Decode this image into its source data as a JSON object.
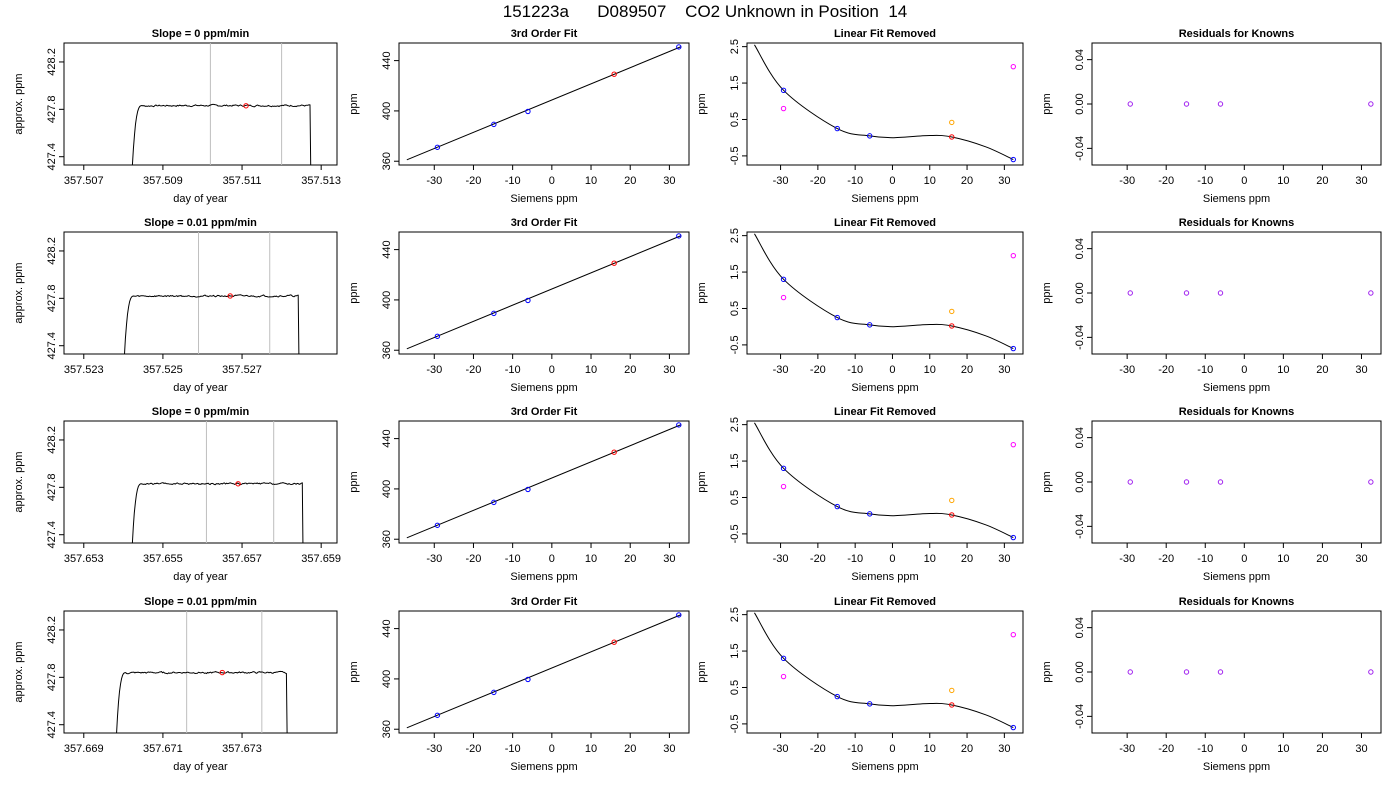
{
  "figure_title": "151223a      D089507    CO2 Unknown in Position  14",
  "colors": {
    "trace": "#000000",
    "window": "#bebebe",
    "known": "#0000ff",
    "unknown": "#ff0000",
    "orange": "#ffa500",
    "magenta": "#ff00ff",
    "purple": "#a020f0"
  },
  "chart_data": [
    {
      "type": "line",
      "title": "Slope =  0  ppm/min",
      "xlabel": "day of year",
      "ylabel": "approx. ppm",
      "xlim": [
        357.5065,
        357.5134
      ],
      "ylim": [
        427.33,
        428.36
      ],
      "xticks": [
        357.507,
        357.509,
        357.511,
        357.513
      ],
      "xtick_labels": [
        "357.507",
        "357.509",
        "357.511",
        "357.513"
      ],
      "yticks": [
        427.4,
        427.8,
        428.2
      ],
      "ytick_labels": [
        "427.4",
        "427.8",
        "428.2"
      ],
      "window_lines": [
        357.5102,
        357.512
      ],
      "trace_start": 357.5082,
      "trace_end": 357.5128,
      "plateau": 427.832,
      "marker": {
        "x": 357.5111,
        "y": 427.83
      }
    },
    {
      "type": "scatter",
      "title": "3rd Order Fit",
      "xlabel": "Siemens ppm",
      "ylabel": "ppm",
      "xlim": [
        -39,
        35
      ],
      "ylim": [
        357,
        454
      ],
      "xticks": [
        -30,
        -20,
        -10,
        0,
        10,
        20,
        30
      ],
      "xtick_labels": [
        "-30",
        "-20",
        "-10",
        "0",
        "10",
        "20",
        "30"
      ],
      "yticks": [
        360,
        400,
        440
      ],
      "ytick_labels": [
        "360",
        "400",
        "440"
      ],
      "fit_line": [
        [
          -37,
          361.1
        ],
        [
          33,
          451.1
        ]
      ],
      "knowns": {
        "x": [
          -29.2,
          -14.8,
          -6.1,
          32.4
        ],
        "y": [
          371.1,
          389.3,
          399.6,
          450.9
        ]
      },
      "unknown": {
        "x": 15.9,
        "y": 429.2
      }
    },
    {
      "type": "line",
      "title": "Linear Fit Removed",
      "xlabel": "Siemens ppm",
      "ylabel": "ppm",
      "xlim": [
        -39,
        35
      ],
      "ylim": [
        -0.75,
        2.6
      ],
      "xticks": [
        -30,
        -20,
        -10,
        0,
        10,
        20,
        30
      ],
      "xtick_labels": [
        "-30",
        "-20",
        "-10",
        "0",
        "10",
        "20",
        "30"
      ],
      "yticks": [
        -0.5,
        0.5,
        1.5,
        2.5
      ],
      "ytick_labels": [
        "-0.5",
        "0.5",
        "1.5",
        "2.5"
      ],
      "curve_points": [
        [
          -37,
          2.55
        ],
        [
          -29.2,
          1.3
        ],
        [
          -14.8,
          0.25
        ],
        [
          -6.1,
          0.05
        ],
        [
          0,
          0.0
        ],
        [
          10,
          0.06
        ],
        [
          15.9,
          0.02
        ],
        [
          25,
          -0.25
        ],
        [
          32.4,
          -0.6
        ]
      ],
      "knowns": {
        "x": [
          -29.2,
          -14.8,
          -6.1,
          32.4
        ],
        "y": [
          1.3,
          0.25,
          0.05,
          -0.6
        ]
      },
      "unknown": {
        "x": 15.9,
        "y": 0.02
      },
      "orange_point": {
        "x": 15.9,
        "y": 0.42
      },
      "magenta_points": {
        "x": [
          -29.2,
          32.4
        ],
        "y": [
          0.8,
          1.95
        ]
      }
    },
    {
      "type": "scatter",
      "title": "Residuals for Knowns",
      "xlabel": "Siemens ppm",
      "ylabel": "ppm",
      "xlim": [
        -39,
        35
      ],
      "ylim": [
        -0.055,
        0.055
      ],
      "xticks": [
        -30,
        -20,
        -10,
        0,
        10,
        20,
        30
      ],
      "xtick_labels": [
        "-30",
        "-20",
        "-10",
        "0",
        "10",
        "20",
        "30"
      ],
      "yticks": [
        -0.04,
        0.0,
        0.04
      ],
      "ytick_labels": [
        "-0.04",
        "0.00",
        "0.04"
      ],
      "knowns": {
        "x": [
          -29.2,
          -14.8,
          -6.1,
          32.4
        ],
        "y": [
          0,
          0,
          0,
          0
        ]
      }
    },
    {
      "type": "line",
      "title": "Slope =  0.01  ppm/min",
      "xlabel": "day of year",
      "ylabel": "approx. ppm",
      "xlim": [
        357.5225,
        357.5294
      ],
      "ylim": [
        427.33,
        428.36
      ],
      "xticks": [
        357.523,
        357.525,
        357.527
      ],
      "xtick_labels": [
        "357.523",
        "357.525",
        "357.527"
      ],
      "yticks": [
        427.4,
        427.8,
        428.2
      ],
      "ytick_labels": [
        "427.4",
        "427.8",
        "428.2"
      ],
      "window_lines": [
        357.5259,
        357.5277
      ],
      "trace_start": 357.524,
      "trace_end": 357.5285,
      "plateau": 427.82,
      "marker": {
        "x": 357.5267,
        "y": 427.82
      }
    },
    {
      "type": "scatter",
      "title": "3rd Order Fit",
      "xlabel": "Siemens ppm",
      "ylabel": "ppm",
      "xlim": [
        -39,
        35
      ],
      "ylim": [
        357,
        454
      ],
      "xticks": [
        -30,
        -20,
        -10,
        0,
        10,
        20,
        30
      ],
      "xtick_labels": [
        "-30",
        "-20",
        "-10",
        "0",
        "10",
        "20",
        "30"
      ],
      "yticks": [
        360,
        400,
        440
      ],
      "ytick_labels": [
        "360",
        "400",
        "440"
      ],
      "fit_line": [
        [
          -37,
          361.1
        ],
        [
          33,
          451.1
        ]
      ],
      "knowns": {
        "x": [
          -29.2,
          -14.8,
          -6.1,
          32.4
        ],
        "y": [
          371.1,
          389.3,
          399.6,
          450.9
        ]
      },
      "unknown": {
        "x": 15.9,
        "y": 429.2
      }
    },
    {
      "type": "line",
      "title": "Linear Fit Removed",
      "xlabel": "Siemens ppm",
      "ylabel": "ppm",
      "xlim": [
        -39,
        35
      ],
      "ylim": [
        -0.75,
        2.6
      ],
      "xticks": [
        -30,
        -20,
        -10,
        0,
        10,
        20,
        30
      ],
      "xtick_labels": [
        "-30",
        "-20",
        "-10",
        "0",
        "10",
        "20",
        "30"
      ],
      "yticks": [
        -0.5,
        0.5,
        1.5,
        2.5
      ],
      "ytick_labels": [
        "-0.5",
        "0.5",
        "1.5",
        "2.5"
      ],
      "curve_points": [
        [
          -37,
          2.55
        ],
        [
          -29.2,
          1.3
        ],
        [
          -14.8,
          0.25
        ],
        [
          -6.1,
          0.05
        ],
        [
          0,
          0.0
        ],
        [
          10,
          0.06
        ],
        [
          15.9,
          0.02
        ],
        [
          25,
          -0.25
        ],
        [
          32.4,
          -0.6
        ]
      ],
      "knowns": {
        "x": [
          -29.2,
          -14.8,
          -6.1,
          32.4
        ],
        "y": [
          1.3,
          0.25,
          0.05,
          -0.6
        ]
      },
      "unknown": {
        "x": 15.9,
        "y": 0.02
      },
      "orange_point": {
        "x": 15.9,
        "y": 0.42
      },
      "magenta_points": {
        "x": [
          -29.2,
          32.4
        ],
        "y": [
          0.8,
          1.95
        ]
      }
    },
    {
      "type": "scatter",
      "title": "Residuals for Knowns",
      "xlabel": "Siemens ppm",
      "ylabel": "ppm",
      "xlim": [
        -39,
        35
      ],
      "ylim": [
        -0.055,
        0.055
      ],
      "xticks": [
        -30,
        -20,
        -10,
        0,
        10,
        20,
        30
      ],
      "xtick_labels": [
        "-30",
        "-20",
        "-10",
        "0",
        "10",
        "20",
        "30"
      ],
      "yticks": [
        -0.04,
        0.0,
        0.04
      ],
      "ytick_labels": [
        "-0.04",
        "0.00",
        "0.04"
      ],
      "knowns": {
        "x": [
          -29.2,
          -14.8,
          -6.1,
          32.4
        ],
        "y": [
          0,
          0,
          0,
          0
        ]
      }
    },
    {
      "type": "line",
      "title": "Slope =  0  ppm/min",
      "xlabel": "day of year",
      "ylabel": "approx. ppm",
      "xlim": [
        357.6525,
        357.6594
      ],
      "ylim": [
        427.33,
        428.36
      ],
      "xticks": [
        357.653,
        357.655,
        357.657,
        357.659
      ],
      "xtick_labels": [
        "357.653",
        "357.655",
        "357.657",
        "357.659"
      ],
      "yticks": [
        427.4,
        427.8,
        428.2
      ],
      "ytick_labels": [
        "427.4",
        "427.8",
        "428.2"
      ],
      "window_lines": [
        357.6561,
        357.6578
      ],
      "trace_start": 357.6542,
      "trace_end": 357.6586,
      "plateau": 427.83,
      "marker": {
        "x": 357.6569,
        "y": 427.83
      }
    },
    {
      "type": "scatter",
      "title": "3rd Order Fit",
      "xlabel": "Siemens ppm",
      "ylabel": "ppm",
      "xlim": [
        -39,
        35
      ],
      "ylim": [
        357,
        454
      ],
      "xticks": [
        -30,
        -20,
        -10,
        0,
        10,
        20,
        30
      ],
      "xtick_labels": [
        "-30",
        "-20",
        "-10",
        "0",
        "10",
        "20",
        "30"
      ],
      "yticks": [
        360,
        400,
        440
      ],
      "ytick_labels": [
        "360",
        "400",
        "440"
      ],
      "fit_line": [
        [
          -37,
          361.1
        ],
        [
          33,
          451.1
        ]
      ],
      "knowns": {
        "x": [
          -29.2,
          -14.8,
          -6.1,
          32.4
        ],
        "y": [
          371.1,
          389.3,
          399.6,
          450.9
        ]
      },
      "unknown": {
        "x": 15.9,
        "y": 429.2
      }
    },
    {
      "type": "line",
      "title": "Linear Fit Removed",
      "xlabel": "Siemens ppm",
      "ylabel": "ppm",
      "xlim": [
        -39,
        35
      ],
      "ylim": [
        -0.75,
        2.6
      ],
      "xticks": [
        -30,
        -20,
        -10,
        0,
        10,
        20,
        30
      ],
      "xtick_labels": [
        "-30",
        "-20",
        "-10",
        "0",
        "10",
        "20",
        "30"
      ],
      "yticks": [
        -0.5,
        0.5,
        1.5,
        2.5
      ],
      "ytick_labels": [
        "-0.5",
        "0.5",
        "1.5",
        "2.5"
      ],
      "curve_points": [
        [
          -37,
          2.55
        ],
        [
          -29.2,
          1.3
        ],
        [
          -14.8,
          0.25
        ],
        [
          -6.1,
          0.05
        ],
        [
          0,
          0.0
        ],
        [
          10,
          0.06
        ],
        [
          15.9,
          0.02
        ],
        [
          25,
          -0.25
        ],
        [
          32.4,
          -0.6
        ]
      ],
      "knowns": {
        "x": [
          -29.2,
          -14.8,
          -6.1,
          32.4
        ],
        "y": [
          1.3,
          0.25,
          0.05,
          -0.6
        ]
      },
      "unknown": {
        "x": 15.9,
        "y": 0.02
      },
      "orange_point": {
        "x": 15.9,
        "y": 0.42
      },
      "magenta_points": {
        "x": [
          -29.2,
          32.4
        ],
        "y": [
          0.8,
          1.95
        ]
      }
    },
    {
      "type": "scatter",
      "title": "Residuals for Knowns",
      "xlabel": "Siemens ppm",
      "ylabel": "ppm",
      "xlim": [
        -39,
        35
      ],
      "ylim": [
        -0.055,
        0.055
      ],
      "xticks": [
        -30,
        -20,
        -10,
        0,
        10,
        20,
        30
      ],
      "xtick_labels": [
        "-30",
        "-20",
        "-10",
        "0",
        "10",
        "20",
        "30"
      ],
      "yticks": [
        -0.04,
        0.0,
        0.04
      ],
      "ytick_labels": [
        "-0.04",
        "0.00",
        "0.04"
      ],
      "knowns": {
        "x": [
          -29.2,
          -14.8,
          -6.1,
          32.4
        ],
        "y": [
          0,
          0,
          0,
          0
        ]
      }
    },
    {
      "type": "line",
      "title": "Slope =  0.01  ppm/min",
      "xlabel": "day of year",
      "ylabel": "approx. ppm",
      "xlim": [
        357.6685,
        357.6754
      ],
      "ylim": [
        427.33,
        428.36
      ],
      "xticks": [
        357.669,
        357.671,
        357.673
      ],
      "xtick_labels": [
        "357.669",
        "357.671",
        "357.673"
      ],
      "yticks": [
        427.4,
        427.8,
        428.2
      ],
      "ytick_labels": [
        "427.4",
        "427.8",
        "428.2"
      ],
      "window_lines": [
        357.6716,
        357.6735
      ],
      "trace_start": 357.6698,
      "trace_end": 357.6742,
      "plateau": 427.84,
      "marker": {
        "x": 357.6725,
        "y": 427.84
      }
    },
    {
      "type": "scatter",
      "title": "3rd Order Fit",
      "xlabel": "Siemens ppm",
      "ylabel": "ppm",
      "xlim": [
        -39,
        35
      ],
      "ylim": [
        357,
        454
      ],
      "xticks": [
        -30,
        -20,
        -10,
        0,
        10,
        20,
        30
      ],
      "xtick_labels": [
        "-30",
        "-20",
        "-10",
        "0",
        "10",
        "20",
        "30"
      ],
      "yticks": [
        360,
        400,
        440
      ],
      "ytick_labels": [
        "360",
        "400",
        "440"
      ],
      "fit_line": [
        [
          -37,
          361.1
        ],
        [
          33,
          451.1
        ]
      ],
      "knowns": {
        "x": [
          -29.2,
          -14.8,
          -6.1,
          32.4
        ],
        "y": [
          371.1,
          389.3,
          399.6,
          450.9
        ]
      },
      "unknown": {
        "x": 15.9,
        "y": 429.2
      }
    },
    {
      "type": "line",
      "title": "Linear Fit Removed",
      "xlabel": "Siemens ppm",
      "ylabel": "ppm",
      "xlim": [
        -39,
        35
      ],
      "ylim": [
        -0.75,
        2.6
      ],
      "xticks": [
        -30,
        -20,
        -10,
        0,
        10,
        20,
        30
      ],
      "xtick_labels": [
        "-30",
        "-20",
        "-10",
        "0",
        "10",
        "20",
        "30"
      ],
      "yticks": [
        -0.5,
        0.5,
        1.5,
        2.5
      ],
      "ytick_labels": [
        "-0.5",
        "0.5",
        "1.5",
        "2.5"
      ],
      "curve_points": [
        [
          -37,
          2.55
        ],
        [
          -29.2,
          1.3
        ],
        [
          -14.8,
          0.25
        ],
        [
          -6.1,
          0.05
        ],
        [
          0,
          0.0
        ],
        [
          10,
          0.06
        ],
        [
          15.9,
          0.02
        ],
        [
          25,
          -0.25
        ],
        [
          32.4,
          -0.6
        ]
      ],
      "knowns": {
        "x": [
          -29.2,
          -14.8,
          -6.1,
          32.4
        ],
        "y": [
          1.3,
          0.25,
          0.05,
          -0.6
        ]
      },
      "unknown": {
        "x": 15.9,
        "y": 0.02
      },
      "orange_point": {
        "x": 15.9,
        "y": 0.42
      },
      "magenta_points": {
        "x": [
          -29.2,
          32.4
        ],
        "y": [
          0.8,
          1.95
        ]
      }
    },
    {
      "type": "scatter",
      "title": "Residuals for Knowns",
      "xlabel": "Siemens ppm",
      "ylabel": "ppm",
      "xlim": [
        -39,
        35
      ],
      "ylim": [
        -0.055,
        0.055
      ],
      "xticks": [
        -30,
        -20,
        -10,
        0,
        10,
        20,
        30
      ],
      "xtick_labels": [
        "-30",
        "-20",
        "-10",
        "0",
        "10",
        "20",
        "30"
      ],
      "yticks": [
        -0.04,
        0.0,
        0.04
      ],
      "ytick_labels": [
        "-0.04",
        "0.00",
        "0.04"
      ],
      "knowns": {
        "x": [
          -29.2,
          -14.8,
          -6.1,
          32.4
        ],
        "y": [
          0,
          0,
          0,
          0
        ]
      }
    }
  ]
}
